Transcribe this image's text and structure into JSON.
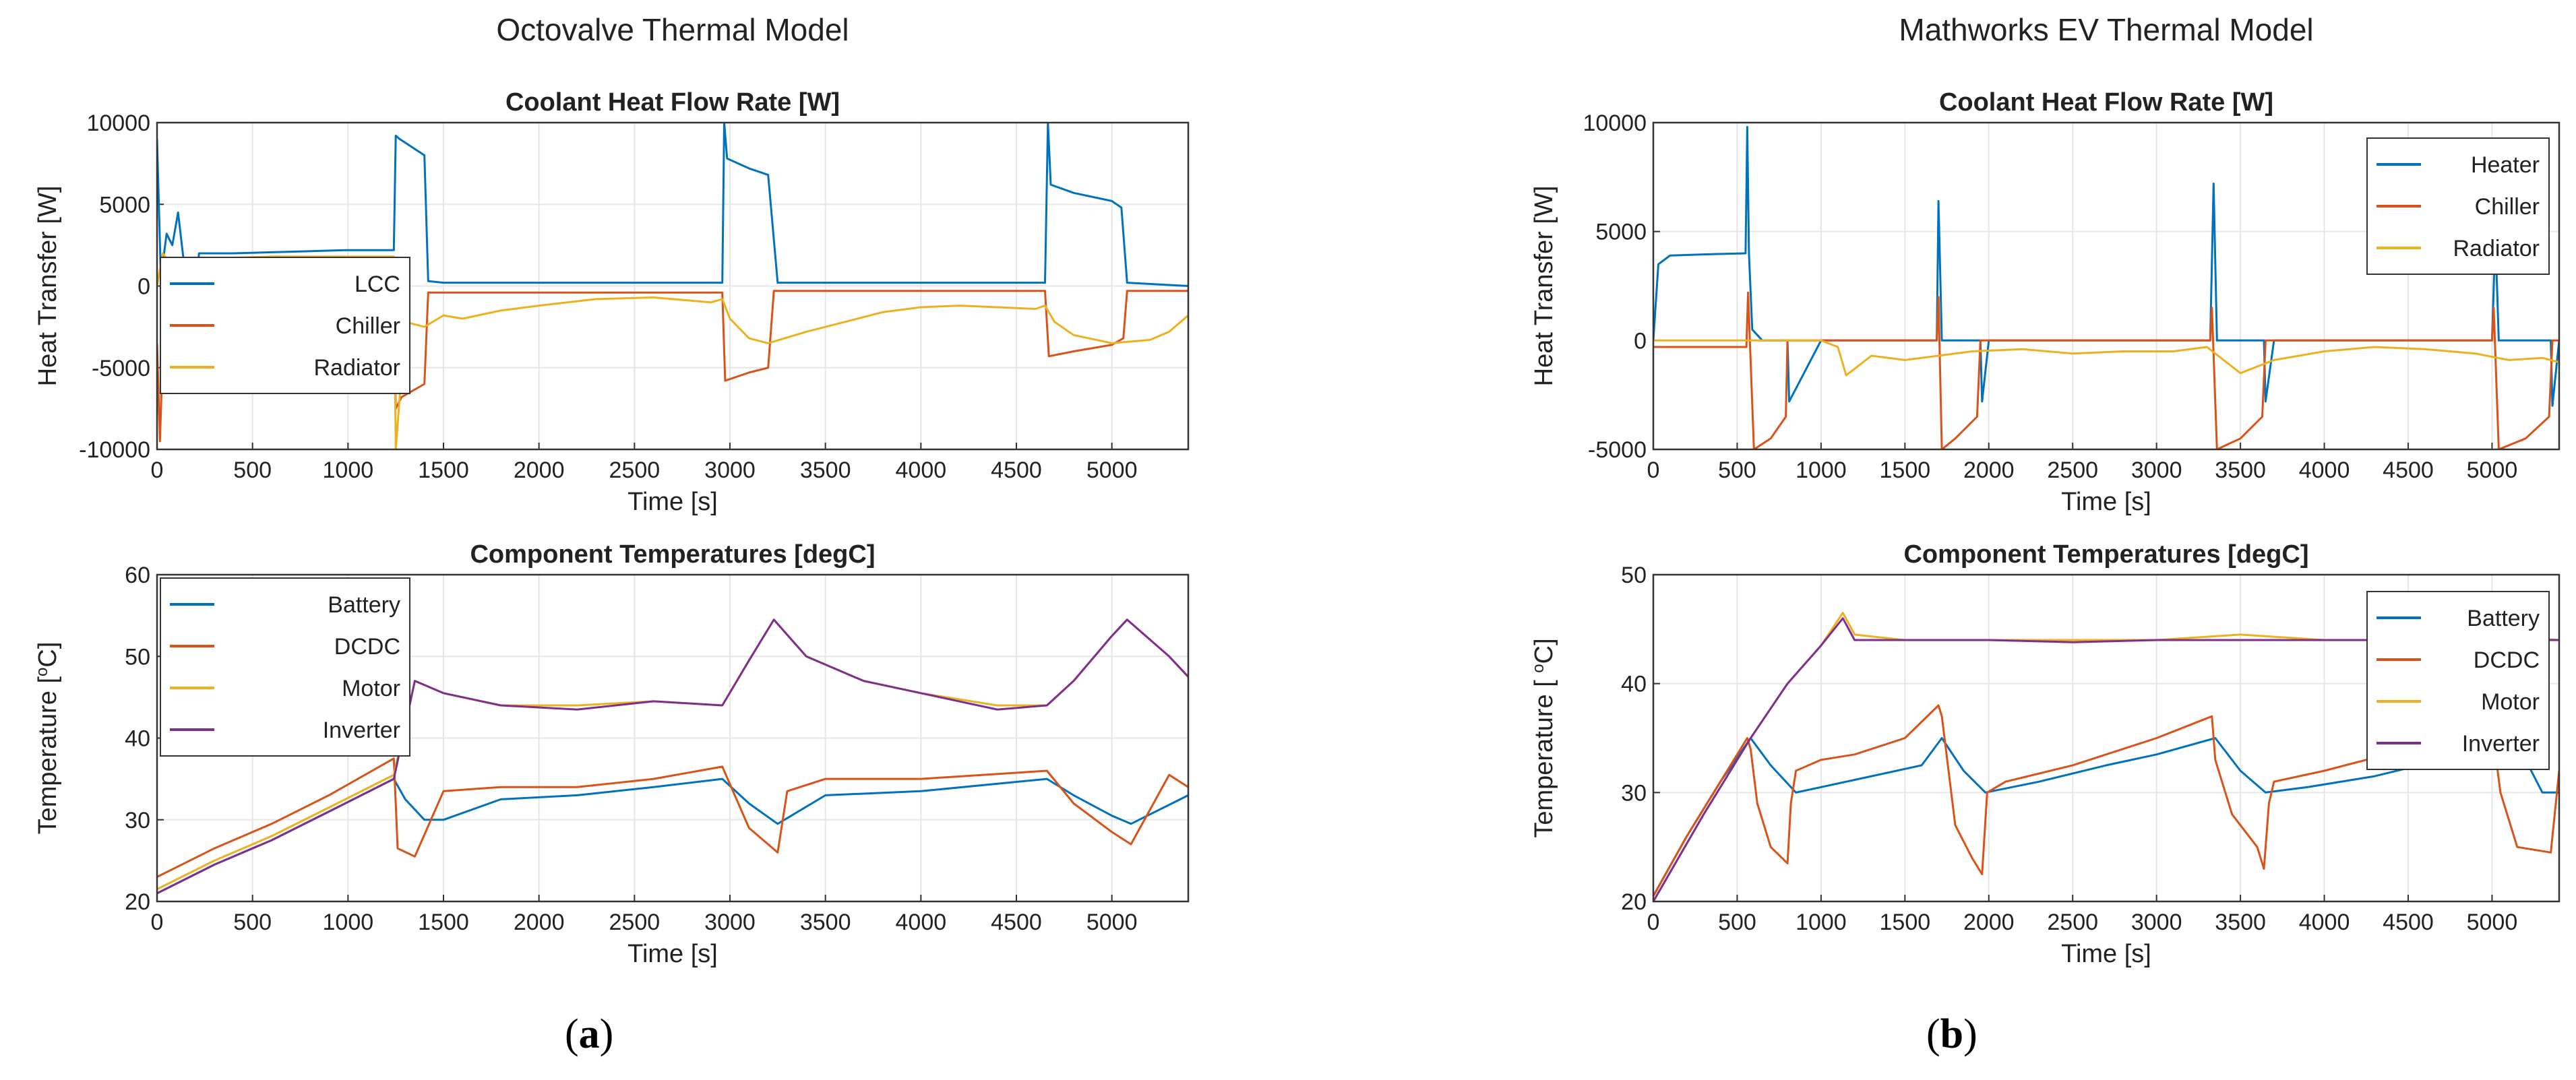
{
  "panels": [
    {
      "label_open": "(",
      "label_letter": "a",
      "label_close": ")"
    },
    {
      "label_open": "(",
      "label_letter": "b",
      "label_close": ")"
    }
  ],
  "chart_data": [
    {
      "type": "line",
      "suptitle": "Octovalve Thermal Model",
      "title": "Coolant Heat Flow Rate [W]",
      "xlabel": "Time [s]",
      "ylabel": "Heat Transfer [W]",
      "xlim": [
        0,
        5400
      ],
      "ylim": [
        -10000,
        10000
      ],
      "xticks": [
        0,
        500,
        1000,
        1500,
        2000,
        2500,
        3000,
        3500,
        4000,
        4500,
        5000
      ],
      "yticks": [
        -10000,
        -5000,
        0,
        5000,
        10000
      ],
      "grid": true,
      "legend": "bottom-left",
      "series": [
        {
          "name": "LCC",
          "color": "#0072BD",
          "x": [
            0,
            20,
            50,
            80,
            110,
            150,
            170,
            190,
            220,
            400,
            700,
            1000,
            1240,
            1250,
            1270,
            1400,
            1420,
            1500,
            2000,
            2500,
            2960,
            2970,
            2985,
            3100,
            3200,
            3250,
            3300,
            3800,
            4300,
            4650,
            4665,
            4680,
            4800,
            5000,
            5050,
            5080,
            5400
          ],
          "y": [
            9000,
            500,
            3200,
            2500,
            4500,
            500,
            -500,
            -1500,
            2000,
            2000,
            2100,
            2200,
            2200,
            9200,
            9000,
            8000,
            300,
            200,
            200,
            200,
            200,
            10000,
            7800,
            7200,
            6800,
            200,
            200,
            200,
            200,
            200,
            10000,
            6200,
            5700,
            5200,
            4800,
            200,
            0
          ]
        },
        {
          "name": "Chiller",
          "color": "#D95319",
          "x": [
            0,
            15,
            30,
            60,
            100,
            150,
            200,
            300,
            500,
            800,
            1000,
            1200,
            1240,
            1250,
            1280,
            1400,
            1420,
            1500,
            2000,
            2500,
            2960,
            2975,
            3100,
            3200,
            3230,
            3300,
            3800,
            4300,
            4650,
            4670,
            4800,
            5000,
            5060,
            5080,
            5400
          ],
          "y": [
            -3500,
            -9500,
            -4000,
            -3000,
            -2000,
            -1600,
            -1700,
            -1700,
            -1700,
            -1700,
            -1600,
            -1600,
            -1600,
            -7500,
            -6800,
            -6000,
            -400,
            -400,
            -400,
            -400,
            -400,
            -5800,
            -5300,
            -5000,
            -300,
            -300,
            -300,
            -300,
            -300,
            -4300,
            -4000,
            -3600,
            -3200,
            -300,
            -300
          ]
        },
        {
          "name": "Radiator",
          "color": "#EDB120",
          "x": [
            0,
            30,
            80,
            150,
            200,
            300,
            600,
            900,
            1200,
            1240,
            1250,
            1300,
            1400,
            1500,
            1600,
            1800,
            2000,
            2300,
            2600,
            2900,
            2960,
            3000,
            3100,
            3200,
            3400,
            3600,
            3800,
            4000,
            4200,
            4400,
            4600,
            4650,
            4700,
            4800,
            5000,
            5200,
            5300,
            5400
          ],
          "y": [
            0,
            2000,
            1200,
            200,
            1500,
            1700,
            1800,
            1800,
            1800,
            1800,
            -10000,
            -2200,
            -2500,
            -1800,
            -2000,
            -1500,
            -1200,
            -800,
            -700,
            -1000,
            -800,
            -2000,
            -3200,
            -3500,
            -2800,
            -2200,
            -1600,
            -1300,
            -1200,
            -1300,
            -1400,
            -1200,
            -2200,
            -3000,
            -3500,
            -3300,
            -2800,
            -1800
          ]
        }
      ]
    },
    {
      "type": "line",
      "title": "Component Temperatures [degC]",
      "xlabel": "Time [s]",
      "ylabel": "Temperature [°C]",
      "ylabel_sup": "o",
      "ylabel_pre": "Temperature [",
      "ylabel_post": "C]",
      "xlim": [
        0,
        5400
      ],
      "ylim": [
        20,
        60
      ],
      "xticks": [
        0,
        500,
        1000,
        1500,
        2000,
        2500,
        3000,
        3500,
        4000,
        4500,
        5000
      ],
      "yticks": [
        20,
        30,
        40,
        50,
        60
      ],
      "grid": true,
      "legend": "top-left",
      "series": [
        {
          "name": "Battery",
          "color": "#0072BD",
          "x": [
            0,
            300,
            600,
            900,
            1240,
            1300,
            1400,
            1500,
            1800,
            2200,
            2600,
            2960,
            3100,
            3250,
            3500,
            4000,
            4660,
            4800,
            5000,
            5100,
            5400
          ],
          "y": [
            21,
            24.5,
            27.5,
            31,
            35,
            32.5,
            30,
            30,
            32.5,
            33,
            34,
            35,
            32,
            29.5,
            33,
            33.5,
            35,
            33,
            30.5,
            29.5,
            33
          ]
        },
        {
          "name": "DCDC",
          "color": "#D95319",
          "x": [
            0,
            300,
            600,
            900,
            1240,
            1260,
            1350,
            1500,
            1800,
            2200,
            2600,
            2960,
            3100,
            3250,
            3300,
            3500,
            4000,
            4660,
            4800,
            5000,
            5100,
            5300,
            5400
          ],
          "y": [
            23,
            26.5,
            29.5,
            33,
            37.5,
            26.5,
            25.5,
            33.5,
            34,
            34,
            35,
            36.5,
            29,
            26,
            33.5,
            35,
            35,
            36,
            32,
            28.5,
            27,
            35.5,
            34
          ]
        },
        {
          "name": "Motor",
          "color": "#EDB120",
          "x": [
            0,
            300,
            600,
            900,
            1240,
            1350,
            1500,
            1800,
            2200,
            2600,
            2960,
            3100,
            3230,
            3400,
            3700,
            4000,
            4400,
            4660,
            4800,
            5000,
            5080,
            5300,
            5400
          ],
          "y": [
            21.5,
            25,
            28,
            31.5,
            35.5,
            47,
            45.5,
            44,
            44,
            44.5,
            44,
            49.5,
            54.5,
            50,
            47,
            45.5,
            44,
            44,
            47,
            52.5,
            54.5,
            50,
            47.5
          ]
        },
        {
          "name": "Inverter",
          "color": "#7E2F8E",
          "x": [
            0,
            300,
            600,
            900,
            1240,
            1350,
            1500,
            1800,
            2200,
            2600,
            2960,
            3100,
            3230,
            3400,
            3700,
            4000,
            4400,
            4660,
            4800,
            5000,
            5080,
            5300,
            5400
          ],
          "y": [
            21,
            24.5,
            27.5,
            31,
            35,
            47,
            45.5,
            44,
            43.5,
            44.5,
            44,
            49.5,
            54.5,
            50,
            47,
            45.5,
            43.5,
            44,
            47,
            52.5,
            54.5,
            50,
            47.5
          ]
        }
      ]
    },
    {
      "type": "line",
      "suptitle": "Mathworks EV Thermal Model",
      "title": "Coolant Heat Flow Rate [W]",
      "xlabel": "Time [s]",
      "ylabel": "Heat Transfer [W]",
      "xlim": [
        0,
        5400
      ],
      "ylim": [
        -5000,
        10000
      ],
      "xticks": [
        0,
        500,
        1000,
        1500,
        2000,
        2500,
        3000,
        3500,
        4000,
        4500,
        5000
      ],
      "yticks": [
        -5000,
        0,
        5000,
        10000
      ],
      "grid": true,
      "legend": "top-right",
      "series": [
        {
          "name": "Heater",
          "color": "#0072BD",
          "x": [
            0,
            30,
            100,
            300,
            550,
            560,
            570,
            590,
            650,
            800,
            810,
            1000,
            1690,
            1700,
            1720,
            1950,
            1960,
            2000,
            3320,
            3340,
            3360,
            3640,
            3650,
            3700,
            5000,
            5020,
            5040,
            5350,
            5360,
            5400
          ],
          "y": [
            0,
            3500,
            3900,
            3950,
            4000,
            9800,
            4000,
            500,
            0,
            0,
            -2800,
            0,
            0,
            6400,
            0,
            0,
            -2800,
            0,
            0,
            7200,
            0,
            0,
            -2800,
            0,
            0,
            4800,
            0,
            0,
            -3000,
            0
          ]
        },
        {
          "name": "Chiller",
          "color": "#D95319",
          "x": [
            0,
            300,
            555,
            565,
            600,
            700,
            790,
            800,
            1000,
            1690,
            1700,
            1720,
            1800,
            1930,
            1950,
            3320,
            3330,
            3360,
            3500,
            3630,
            3650,
            5000,
            5010,
            5040,
            5200,
            5340,
            5360,
            5400
          ],
          "y": [
            -300,
            -300,
            -300,
            2200,
            -5000,
            -4500,
            -3500,
            0,
            0,
            0,
            2000,
            -5000,
            -4500,
            -3500,
            0,
            0,
            1500,
            -5000,
            -4500,
            -3500,
            0,
            0,
            1500,
            -5000,
            -4500,
            -3500,
            0,
            0
          ]
        },
        {
          "name": "Radiator",
          "color": "#EDB120",
          "x": [
            0,
            500,
            1000,
            1100,
            1150,
            1300,
            1500,
            1700,
            1900,
            2200,
            2500,
            2800,
            3100,
            3300,
            3500,
            3700,
            4000,
            4300,
            4600,
            4900,
            5100,
            5300,
            5400
          ],
          "y": [
            0,
            0,
            0,
            -300,
            -1600,
            -700,
            -900,
            -700,
            -500,
            -400,
            -600,
            -500,
            -500,
            -300,
            -1500,
            -900,
            -500,
            -300,
            -400,
            -600,
            -900,
            -800,
            -1000
          ]
        }
      ]
    },
    {
      "type": "line",
      "title": "Component Temperatures [degC]",
      "xlabel": "Time [s]",
      "ylabel": "Temperature [ °C]",
      "ylabel_sup": "o",
      "ylabel_pre": "Temperature [ ",
      "ylabel_post": "C]",
      "xlim": [
        0,
        5400
      ],
      "ylim": [
        20,
        50
      ],
      "xticks": [
        0,
        500,
        1000,
        1500,
        2000,
        2500,
        3000,
        3500,
        4000,
        4500,
        5000
      ],
      "yticks": [
        20,
        30,
        40,
        50
      ],
      "grid": true,
      "legend": "top-right",
      "series": [
        {
          "name": "Battery",
          "color": "#0072BD",
          "x": [
            0,
            200,
            400,
            580,
            700,
            850,
            1000,
            1300,
            1600,
            1720,
            1850,
            1980,
            2300,
            2700,
            3000,
            3350,
            3500,
            3650,
            3900,
            4300,
            4700,
            5000,
            5200,
            5300,
            5400
          ],
          "y": [
            20.5,
            26,
            31,
            35,
            32.5,
            30,
            30.5,
            31.5,
            32.5,
            35,
            32,
            30,
            31,
            32.5,
            33.5,
            35,
            32,
            30,
            30.5,
            31.5,
            33,
            35,
            33,
            30,
            30
          ]
        },
        {
          "name": "DCDC",
          "color": "#D95319",
          "x": [
            0,
            200,
            400,
            560,
            580,
            620,
            700,
            800,
            820,
            850,
            1000,
            1200,
            1500,
            1700,
            1720,
            1800,
            1900,
            1960,
            1990,
            2100,
            2500,
            3000,
            3330,
            3350,
            3450,
            3600,
            3640,
            3670,
            3700,
            4000,
            4500,
            5000,
            5050,
            5150,
            5350,
            5400
          ],
          "y": [
            20.5,
            26,
            31,
            35,
            34,
            29,
            25,
            23.5,
            29,
            32,
            33,
            33.5,
            35,
            38,
            37,
            27,
            24,
            22.5,
            30,
            31,
            32.5,
            35,
            37,
            33,
            28,
            25,
            23,
            29,
            31,
            32,
            34,
            36,
            30,
            25,
            24.5,
            32
          ]
        },
        {
          "name": "Motor",
          "color": "#EDB120",
          "x": [
            0,
            300,
            580,
            800,
            1000,
            1130,
            1200,
            1500,
            2000,
            2500,
            3000,
            3500,
            4000,
            4500,
            5000,
            5400
          ],
          "y": [
            20,
            28,
            35,
            40,
            43.5,
            46.5,
            44.5,
            44,
            44,
            44,
            44,
            44.5,
            44,
            44,
            44.5,
            44
          ]
        },
        {
          "name": "Inverter",
          "color": "#7E2F8E",
          "x": [
            0,
            300,
            580,
            800,
            1000,
            1130,
            1200,
            1500,
            2000,
            2500,
            3000,
            3500,
            4000,
            4500,
            5000,
            5400
          ],
          "y": [
            20,
            28,
            35,
            40,
            43.5,
            46,
            44,
            44,
            44,
            43.8,
            44,
            44,
            44,
            44,
            44,
            44
          ]
        }
      ]
    }
  ]
}
